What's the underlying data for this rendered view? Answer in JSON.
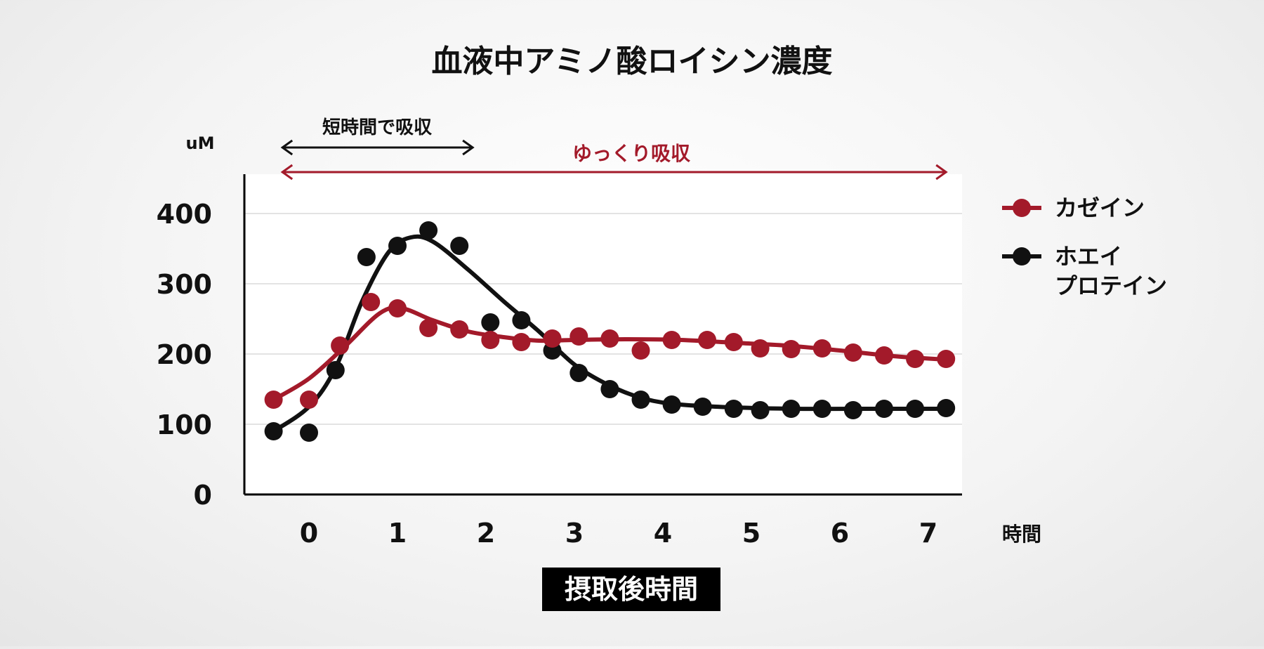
{
  "chart_data": {
    "type": "line",
    "title": "血液中アミノ酸ロイシン濃度",
    "ylabel": "uM",
    "xlabel": "摂取後時間",
    "x_unit_label": "時間",
    "ylim": [
      0,
      400
    ],
    "xlim": [
      -0.55,
      7.3
    ],
    "y_ticks": [
      "0",
      "100",
      "200",
      "300",
      "400"
    ],
    "x_ticks": [
      "0",
      "1",
      "2",
      "3",
      "4",
      "5",
      "6",
      "7"
    ],
    "grid": true,
    "legend_position": "right",
    "annotations": {
      "fast": {
        "label": "短時間で吸収",
        "x_range": [
          -0.3,
          1.85
        ]
      },
      "slow": {
        "label": "ゆっくり吸収",
        "x_range": [
          -0.3,
          7.2
        ]
      }
    },
    "series": [
      {
        "name": "カゼイン",
        "color": "#a31a2a",
        "points": [
          [
            -0.4,
            135
          ],
          [
            0,
            135
          ],
          [
            0.35,
            212
          ],
          [
            0.7,
            274
          ],
          [
            1.0,
            265
          ],
          [
            1.35,
            237
          ],
          [
            1.7,
            235
          ],
          [
            2.05,
            220
          ],
          [
            2.4,
            217
          ],
          [
            2.75,
            222
          ],
          [
            3.05,
            225
          ],
          [
            3.4,
            222
          ],
          [
            3.75,
            205
          ],
          [
            4.1,
            220
          ],
          [
            4.5,
            220
          ],
          [
            4.8,
            217
          ],
          [
            5.1,
            208
          ],
          [
            5.45,
            207
          ],
          [
            5.8,
            208
          ],
          [
            6.15,
            202
          ],
          [
            6.5,
            198
          ],
          [
            6.85,
            193
          ],
          [
            7.2,
            193
          ]
        ],
        "curve": [
          [
            -0.4,
            135
          ],
          [
            0,
            165
          ],
          [
            0.4,
            210
          ],
          [
            0.8,
            258
          ],
          [
            1.05,
            265
          ],
          [
            1.4,
            248
          ],
          [
            1.8,
            232
          ],
          [
            2.2,
            224
          ],
          [
            2.6,
            219
          ],
          [
            3.0,
            220
          ],
          [
            3.6,
            221
          ],
          [
            4.2,
            220
          ],
          [
            4.8,
            216
          ],
          [
            5.4,
            212
          ],
          [
            6.0,
            205
          ],
          [
            6.6,
            197
          ],
          [
            7.2,
            192
          ]
        ]
      },
      {
        "name": "ホエイプロテイン",
        "legend_lines": [
          "ホエイ",
          "プロテイン"
        ],
        "color": "#111111",
        "points": [
          [
            -0.4,
            90
          ],
          [
            0,
            88
          ],
          [
            0.3,
            177
          ],
          [
            0.65,
            338
          ],
          [
            1.0,
            354
          ],
          [
            1.35,
            376
          ],
          [
            1.7,
            354
          ],
          [
            2.05,
            245
          ],
          [
            2.4,
            248
          ],
          [
            2.75,
            205
          ],
          [
            3.05,
            173
          ],
          [
            3.4,
            150
          ],
          [
            3.75,
            135
          ],
          [
            4.1,
            128
          ],
          [
            4.45,
            125
          ],
          [
            4.8,
            122
          ],
          [
            5.1,
            120
          ],
          [
            5.45,
            122
          ],
          [
            5.8,
            122
          ],
          [
            6.15,
            120
          ],
          [
            6.5,
            122
          ],
          [
            6.85,
            122
          ],
          [
            7.2,
            123
          ]
        ],
        "curve": [
          [
            -0.4,
            90
          ],
          [
            0,
            125
          ],
          [
            0.3,
            180
          ],
          [
            0.6,
            275
          ],
          [
            0.9,
            345
          ],
          [
            1.15,
            366
          ],
          [
            1.4,
            360
          ],
          [
            1.8,
            320
          ],
          [
            2.2,
            275
          ],
          [
            2.6,
            232
          ],
          [
            3.0,
            185
          ],
          [
            3.4,
            155
          ],
          [
            3.8,
            136
          ],
          [
            4.2,
            128
          ],
          [
            4.8,
            124
          ],
          [
            5.5,
            122
          ],
          [
            6.2,
            122
          ],
          [
            7.2,
            122
          ]
        ]
      }
    ]
  },
  "footer_label": "摂取後時間"
}
